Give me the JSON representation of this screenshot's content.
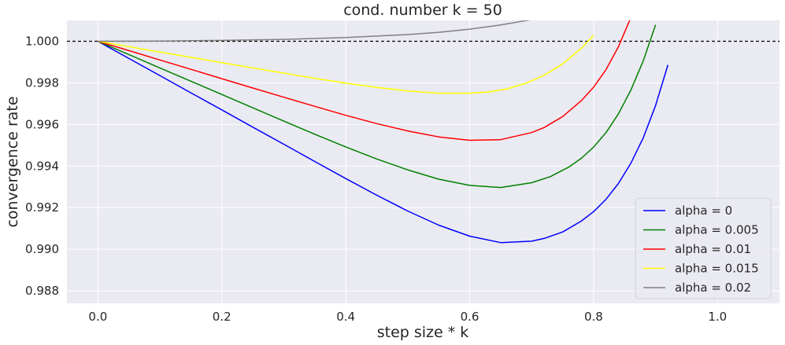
{
  "chart_data": {
    "type": "line",
    "title": "cond. number k = 50",
    "xlabel": "step size * k",
    "ylabel": "convergence rate",
    "xlim": [
      -0.05,
      1.1
    ],
    "ylim": [
      0.9874,
      1.001
    ],
    "xticks": [
      0.0,
      0.2,
      0.4,
      0.6,
      0.8,
      1.0
    ],
    "xtick_labels": [
      "0.0",
      "0.2",
      "0.4",
      "0.6",
      "0.8",
      "1.0"
    ],
    "yticks": [
      0.988,
      0.99,
      0.992,
      0.994,
      0.996,
      0.998,
      1.0
    ],
    "ytick_labels": [
      "0.988",
      "0.990",
      "0.992",
      "0.994",
      "0.996",
      "0.998",
      "1.000"
    ],
    "grid": true,
    "background": "#eaeaf2",
    "legend_position": "lower right",
    "reference_line": {
      "y": 1.0,
      "style": "dashed",
      "color": "#000000"
    },
    "series": [
      {
        "name": "alpha = 0",
        "color": "#0000ff",
        "x": [
          0.0,
          0.05,
          0.1,
          0.15,
          0.2,
          0.25,
          0.3,
          0.35,
          0.4,
          0.45,
          0.5,
          0.55,
          0.6,
          0.65,
          0.7,
          0.72,
          0.75,
          0.78,
          0.8,
          0.82,
          0.84,
          0.86,
          0.88,
          0.9,
          0.92
        ],
        "y": [
          1.0,
          0.99917,
          0.99835,
          0.99752,
          0.9967,
          0.99587,
          0.99505,
          0.99422,
          0.9934,
          0.9926,
          0.99184,
          0.99116,
          0.99063,
          0.99032,
          0.99039,
          0.99052,
          0.99083,
          0.99135,
          0.99181,
          0.9924,
          0.99316,
          0.99413,
          0.99535,
          0.99691,
          0.99886
        ]
      },
      {
        "name": "alpha = 0.005",
        "color": "#008000",
        "x": [
          0.0,
          0.05,
          0.1,
          0.15,
          0.2,
          0.25,
          0.3,
          0.35,
          0.4,
          0.45,
          0.5,
          0.55,
          0.6,
          0.65,
          0.7,
          0.73,
          0.76,
          0.78,
          0.8,
          0.82,
          0.84,
          0.86,
          0.88,
          0.9
        ],
        "y": [
          1.0,
          0.99936,
          0.99872,
          0.99808,
          0.99744,
          0.9968,
          0.99616,
          0.99553,
          0.99492,
          0.99434,
          0.99382,
          0.99337,
          0.99307,
          0.99297,
          0.9932,
          0.99349,
          0.99395,
          0.99437,
          0.99491,
          0.99561,
          0.99651,
          0.99764,
          0.99905,
          1.00079
        ]
      },
      {
        "name": "alpha = 0.01",
        "color": "#ff0000",
        "x": [
          0.0,
          0.05,
          0.1,
          0.15,
          0.2,
          0.25,
          0.3,
          0.35,
          0.4,
          0.45,
          0.5,
          0.55,
          0.6,
          0.65,
          0.7,
          0.72,
          0.75,
          0.78,
          0.8,
          0.82,
          0.84,
          0.86
        ],
        "y": [
          1.0,
          0.99955,
          0.9991,
          0.99865,
          0.9982,
          0.99775,
          0.99731,
          0.99687,
          0.99644,
          0.99604,
          0.99569,
          0.9954,
          0.99524,
          0.99527,
          0.99561,
          0.99585,
          0.99638,
          0.99714,
          0.99779,
          0.99864,
          0.99973,
          1.00113
        ]
      },
      {
        "name": "alpha = 0.015",
        "color": "#ffff00",
        "x": [
          0.0,
          0.05,
          0.1,
          0.15,
          0.2,
          0.25,
          0.3,
          0.35,
          0.4,
          0.45,
          0.5,
          0.55,
          0.6,
          0.63,
          0.66,
          0.69,
          0.72,
          0.75,
          0.78,
          0.8
        ],
        "y": [
          1.0,
          0.99974,
          0.99948,
          0.99923,
          0.99897,
          0.99872,
          0.99847,
          0.99822,
          0.99799,
          0.99778,
          0.99761,
          0.9975,
          0.9975,
          0.99756,
          0.99771,
          0.99797,
          0.99836,
          0.99891,
          0.99966,
          1.00028
        ]
      },
      {
        "name": "alpha = 0.02",
        "color": "#808080",
        "x": [
          0.0,
          0.1,
          0.2,
          0.3,
          0.4,
          0.5,
          0.55,
          0.6,
          0.65,
          0.7,
          0.75
        ],
        "y": [
          1.0,
          1.00001,
          1.00004,
          1.00009,
          1.00018,
          1.00032,
          1.00043,
          1.00058,
          1.00078,
          1.00104,
          1.0014
        ]
      }
    ]
  }
}
